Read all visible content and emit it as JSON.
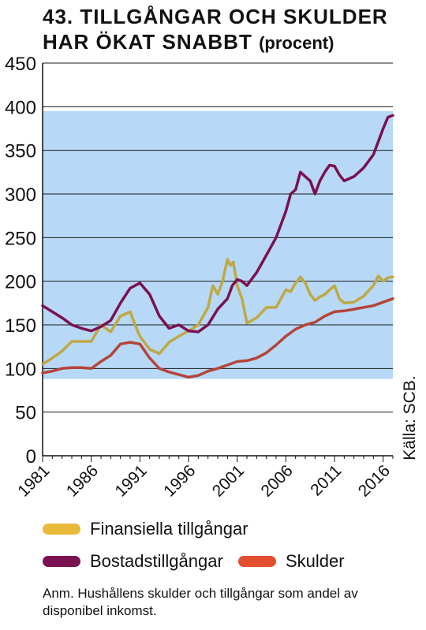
{
  "title": {
    "line1": "43. TILLGÅNGAR OCH SKULDER",
    "line2": "HAR ÖKAT SNABBT",
    "suffix": "(procent)"
  },
  "source": "Källa: SCB.",
  "note": "Anm. Hushållens skulder och tillgångar som andel av disponibel inkomst.",
  "colors": {
    "band": "#b7d9f7",
    "finansiella": "#bfa845",
    "bostad": "#7a1150",
    "skulder": "#b4443a",
    "legend_finansiella": "#e8b93a",
    "legend_bostad": "#7a1150",
    "legend_skulder": "#e3502f"
  },
  "legend": [
    {
      "id": "finansiella",
      "label": "Finansiella tillgångar"
    },
    {
      "id": "bostad",
      "label": "Bostadstillgångar"
    },
    {
      "id": "skulder",
      "label": "Skulder"
    }
  ],
  "chart_data": {
    "type": "line",
    "ylim": [
      0,
      450
    ],
    "xlim": [
      1981,
      2017
    ],
    "yticks": [
      0,
      50,
      100,
      150,
      200,
      250,
      300,
      350,
      400,
      450
    ],
    "xticks": [
      "1981",
      "1986",
      "1991",
      "1996",
      "2001",
      "2006",
      "2011",
      "2016"
    ],
    "shaded_band": [
      88,
      395
    ],
    "grid": "horizontal",
    "series": [
      {
        "name": "Finansiella tillgångar",
        "key": "finansiella",
        "points": [
          [
            1981,
            105
          ],
          [
            1982,
            112
          ],
          [
            1983,
            120
          ],
          [
            1984,
            131
          ],
          [
            1985,
            131
          ],
          [
            1986,
            131
          ],
          [
            1987,
            150
          ],
          [
            1988,
            142
          ],
          [
            1989,
            160
          ],
          [
            1990,
            165
          ],
          [
            1990.5,
            150
          ],
          [
            1991,
            137
          ],
          [
            1992,
            122
          ],
          [
            1993,
            117
          ],
          [
            1994,
            130
          ],
          [
            1995,
            137
          ],
          [
            1996,
            143
          ],
          [
            1997,
            150
          ],
          [
            1998,
            170
          ],
          [
            1998.5,
            195
          ],
          [
            1999,
            185
          ],
          [
            1999.5,
            200
          ],
          [
            2000,
            225
          ],
          [
            2000.3,
            218
          ],
          [
            2000.6,
            222
          ],
          [
            2001,
            195
          ],
          [
            2001.5,
            180
          ],
          [
            2002,
            152
          ],
          [
            2003,
            158
          ],
          [
            2004,
            170
          ],
          [
            2005,
            170
          ],
          [
            2006,
            190
          ],
          [
            2006.5,
            188
          ],
          [
            2007,
            198
          ],
          [
            2007.5,
            205
          ],
          [
            2008,
            198
          ],
          [
            2008.5,
            185
          ],
          [
            2009,
            178
          ],
          [
            2009.5,
            182
          ],
          [
            2010,
            185
          ],
          [
            2010.5,
            190
          ],
          [
            2011,
            195
          ],
          [
            2011.5,
            180
          ],
          [
            2012,
            175
          ],
          [
            2013,
            176
          ],
          [
            2014,
            183
          ],
          [
            2015,
            195
          ],
          [
            2015.5,
            206
          ],
          [
            2016,
            200
          ],
          [
            2016.5,
            204
          ],
          [
            2017,
            205
          ]
        ]
      },
      {
        "name": "Bostadstillgångar",
        "key": "bostad",
        "points": [
          [
            1981,
            172
          ],
          [
            1982,
            165
          ],
          [
            1983,
            158
          ],
          [
            1984,
            150
          ],
          [
            1985,
            146
          ],
          [
            1986,
            143
          ],
          [
            1987,
            148
          ],
          [
            1988,
            155
          ],
          [
            1989,
            175
          ],
          [
            1990,
            192
          ],
          [
            1991,
            198
          ],
          [
            1992,
            185
          ],
          [
            1993,
            160
          ],
          [
            1994,
            146
          ],
          [
            1995,
            150
          ],
          [
            1996,
            143
          ],
          [
            1997,
            142
          ],
          [
            1998,
            150
          ],
          [
            1999,
            168
          ],
          [
            2000,
            180
          ],
          [
            2000.5,
            195
          ],
          [
            2001,
            202
          ],
          [
            2001.5,
            200
          ],
          [
            2002,
            195
          ],
          [
            2003,
            210
          ],
          [
            2004,
            230
          ],
          [
            2005,
            250
          ],
          [
            2006,
            280
          ],
          [
            2006.5,
            300
          ],
          [
            2007,
            305
          ],
          [
            2007.5,
            325
          ],
          [
            2008,
            320
          ],
          [
            2008.5,
            315
          ],
          [
            2009,
            300
          ],
          [
            2009.5,
            315
          ],
          [
            2010,
            325
          ],
          [
            2010.5,
            333
          ],
          [
            2011,
            332
          ],
          [
            2011.5,
            322
          ],
          [
            2012,
            315
          ],
          [
            2013,
            320
          ],
          [
            2014,
            330
          ],
          [
            2015,
            345
          ],
          [
            2015.5,
            360
          ],
          [
            2016,
            375
          ],
          [
            2016.5,
            388
          ],
          [
            2017,
            390
          ]
        ]
      },
      {
        "name": "Skulder",
        "key": "skulder",
        "points": [
          [
            1981,
            95
          ],
          [
            1982,
            97
          ],
          [
            1983,
            100
          ],
          [
            1984,
            101
          ],
          [
            1985,
            101
          ],
          [
            1986,
            100
          ],
          [
            1987,
            108
          ],
          [
            1988,
            115
          ],
          [
            1989,
            128
          ],
          [
            1990,
            130
          ],
          [
            1991,
            128
          ],
          [
            1992,
            112
          ],
          [
            1993,
            100
          ],
          [
            1994,
            96
          ],
          [
            1995,
            93
          ],
          [
            1996,
            90
          ],
          [
            1997,
            92
          ],
          [
            1998,
            97
          ],
          [
            1999,
            100
          ],
          [
            2000,
            104
          ],
          [
            2001,
            108
          ],
          [
            2002,
            109
          ],
          [
            2003,
            112
          ],
          [
            2004,
            118
          ],
          [
            2005,
            127
          ],
          [
            2006,
            137
          ],
          [
            2007,
            145
          ],
          [
            2008,
            150
          ],
          [
            2009,
            153
          ],
          [
            2010,
            160
          ],
          [
            2011,
            165
          ],
          [
            2012,
            166
          ],
          [
            2013,
            168
          ],
          [
            2014,
            170
          ],
          [
            2015,
            172
          ],
          [
            2016,
            176
          ],
          [
            2017,
            180
          ]
        ]
      }
    ]
  }
}
